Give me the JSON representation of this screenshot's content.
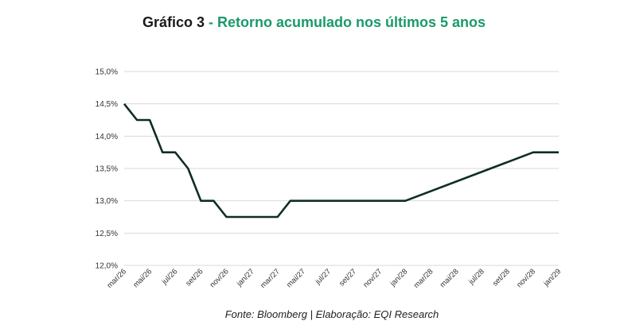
{
  "title": {
    "prefix": "Gráfico 3",
    "separator": " - ",
    "main": "Retorno acumulado nos últimos 5 anos"
  },
  "source": "Fonte: Bloomberg | Elaboração: EQI Research",
  "colors": {
    "title_accent": "#1a9a6a",
    "line": "#0f2e22",
    "grid": "#d9d9d9"
  },
  "chart_data": {
    "type": "line",
    "title": "Gráfico 3 - Retorno acumulado nos últimos 5 anos",
    "xlabel": "",
    "ylabel": "",
    "ylim": [
      12.0,
      15.0
    ],
    "grid": true,
    "legend": "none",
    "y_ticks": [
      "12,0%",
      "12,5%",
      "13,0%",
      "13,5%",
      "14,0%",
      "14,5%",
      "15,0%"
    ],
    "x_ticks": [
      "mar/26",
      "mai/26",
      "jul/26",
      "set/26",
      "nov/26",
      "jan/27",
      "mar/27",
      "mai/27",
      "jul/27",
      "set/27",
      "nov/27",
      "jan/28",
      "mar/28",
      "mai/28",
      "jul/28",
      "set/28",
      "nov/28",
      "jan/29"
    ],
    "series": [
      {
        "points": [
          {
            "x": "2026-03",
            "y": 14.5
          },
          {
            "x": "2026-04",
            "y": 14.25
          },
          {
            "x": "2026-05",
            "y": 14.25
          },
          {
            "x": "2026-06",
            "y": 13.75
          },
          {
            "x": "2026-07",
            "y": 13.75
          },
          {
            "x": "2026-08",
            "y": 13.5
          },
          {
            "x": "2026-09",
            "y": 13.0
          },
          {
            "x": "2026-10",
            "y": 13.0
          },
          {
            "x": "2026-11",
            "y": 12.75
          },
          {
            "x": "2026-12",
            "y": 12.75
          },
          {
            "x": "2027-01",
            "y": 12.75
          },
          {
            "x": "2027-02",
            "y": 12.75
          },
          {
            "x": "2027-03",
            "y": 12.75
          },
          {
            "x": "2027-04",
            "y": 13.0
          },
          {
            "x": "2027-05",
            "y": 13.0
          },
          {
            "x": "2027-06",
            "y": 13.0
          },
          {
            "x": "2027-07",
            "y": 13.0
          },
          {
            "x": "2027-08",
            "y": 13.0
          },
          {
            "x": "2027-09",
            "y": 13.0
          },
          {
            "x": "2027-10",
            "y": 13.0
          },
          {
            "x": "2027-11",
            "y": 13.0
          },
          {
            "x": "2027-12",
            "y": 13.0
          },
          {
            "x": "2028-01",
            "y": 13.0
          },
          {
            "x": "2028-11",
            "y": 13.75
          },
          {
            "x": "2029-01",
            "y": 13.75
          }
        ]
      }
    ]
  }
}
